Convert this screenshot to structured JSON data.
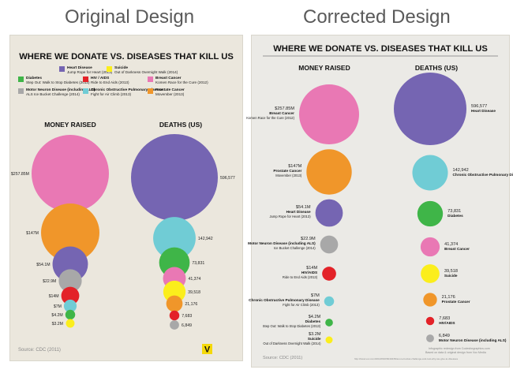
{
  "headings": {
    "left": "Original Design",
    "right": "Corrected Design"
  },
  "colors": {
    "breast_cancer": "#e978b4",
    "prostate_cancer": "#f0962a",
    "heart_disease": "#7565b2",
    "motor_neuron": "#a8a8a8",
    "hiv_aids": "#e32228",
    "copd": "#70ccd5",
    "diabetes": "#3fb548",
    "suicide": "#fbee1c",
    "brand": "#f5d90a"
  },
  "original": {
    "title": "WHERE WE DONATE VS. DISEASES THAT KILL US",
    "money_heading": "MONEY RAISED",
    "deaths_heading": "DEATHS (US)",
    "source": "Source: CDC (2011)",
    "logo": "V",
    "legend": [
      {
        "name": "Heart Disease",
        "campaign": "Jump Rope for Heart (2013)",
        "color": "heart_disease"
      },
      {
        "name": "Suicide",
        "campaign": "Out of Darkness Overnight Walk (2014)",
        "color": "suicide"
      },
      {
        "name": "Diabetes",
        "campaign": "Step Out: Walk to Stop Diabetes (2013)",
        "color": "diabetes"
      },
      {
        "name": "HIV / AIDS",
        "campaign": "Ride to End Aids (2013)",
        "color": "hiv_aids"
      },
      {
        "name": "Breast Cancer",
        "campaign": "Komen Race for the Cure (2012)",
        "color": "breast_cancer"
      },
      {
        "name": "Motor Neuron Disease (including ALS)",
        "campaign": "ALS Ice Bucket Challenge (2014)",
        "color": "motor_neuron"
      },
      {
        "name": "Chronic Obstructive Pulmonary Disease",
        "campaign": "Fight for Air Climb (2013)",
        "color": "copd"
      },
      {
        "name": "Prostate Cancer",
        "campaign": "Movember (2013)",
        "color": "prostate_cancer"
      }
    ]
  },
  "corrected": {
    "title": "WHERE WE DONATE VS. DISEASES THAT KILL US",
    "money_heading": "MONEY RAISED",
    "deaths_heading": "DEATHS (US)",
    "source": "Source: CDC (2011)",
    "footnote_1": "Infographic redesign from Codesforgraphics.com",
    "footnote_2": "Based on data & original design from Vox Media",
    "footnote_url": "http://www.vox.com/2014/8/20/6040435/as-ice-bucket-challenge-and-rest-why-we-give-to-diseases"
  },
  "chart_data": [
    {
      "type": "bubble",
      "title": "MONEY RAISED",
      "unit": "USD",
      "series": [
        {
          "value_label": "$257.85M",
          "value": 257.85,
          "name": "Breast Cancer",
          "campaign": "Komen Race for the Cure (2012)",
          "color": "breast_cancer"
        },
        {
          "value_label": "$147M",
          "value": 147,
          "name": "Prostate Cancer",
          "campaign": "Movember (2013)",
          "color": "prostate_cancer"
        },
        {
          "value_label": "$54.1M",
          "value": 54.1,
          "name": "Heart Disease",
          "campaign": "Jump Rope for Heart (2013)",
          "color": "heart_disease"
        },
        {
          "value_label": "$22.9M",
          "value": 22.9,
          "name": "Motor Neuron Disease (including ALS)",
          "campaign": "Ice Bucket Challenge (2014)",
          "color": "motor_neuron"
        },
        {
          "value_label": "$14M",
          "value": 14,
          "name": "HIV/AIDS",
          "campaign": "Ride to End Aids (2013)",
          "color": "hiv_aids"
        },
        {
          "value_label": "$7M",
          "value": 7,
          "name": "Chronic Obstructive Pulmonary Disease",
          "campaign": "Fight for Air Climb (2013)",
          "color": "copd"
        },
        {
          "value_label": "$4.2M",
          "value": 4.2,
          "name": "Diabetes",
          "campaign": "Step Out: Walk to Stop Diabetes (2013)",
          "color": "diabetes"
        },
        {
          "value_label": "$3.2M",
          "value": 3.2,
          "name": "Suicide",
          "campaign": "Out of Darkness Overnight Walk (2014)",
          "color": "suicide"
        }
      ]
    },
    {
      "type": "bubble",
      "title": "DEATHS (US)",
      "unit": "deaths",
      "series": [
        {
          "value_label": "596,577",
          "value": 596577,
          "name": "Heart Disease",
          "color": "heart_disease"
        },
        {
          "value_label": "142,942",
          "value": 142942,
          "name": "Chronic Obstructive Pulmonary Disease",
          "color": "copd"
        },
        {
          "value_label": "73,831",
          "value": 73831,
          "name": "Diabetes",
          "color": "diabetes"
        },
        {
          "value_label": "41,374",
          "value": 41374,
          "name": "Breast Cancer",
          "color": "breast_cancer"
        },
        {
          "value_label": "39,518",
          "value": 39518,
          "name": "Suicide",
          "color": "suicide"
        },
        {
          "value_label": "21,176",
          "value": 21176,
          "name": "Prostate Cancer",
          "color": "prostate_cancer"
        },
        {
          "value_label": "7,683",
          "value": 7683,
          "name": "HIV/AIDS",
          "color": "hiv_aids"
        },
        {
          "value_label": "6,849",
          "value": 6849,
          "name": "Motor Neuron Disease (including ALS)",
          "color": "motor_neuron"
        }
      ]
    }
  ]
}
